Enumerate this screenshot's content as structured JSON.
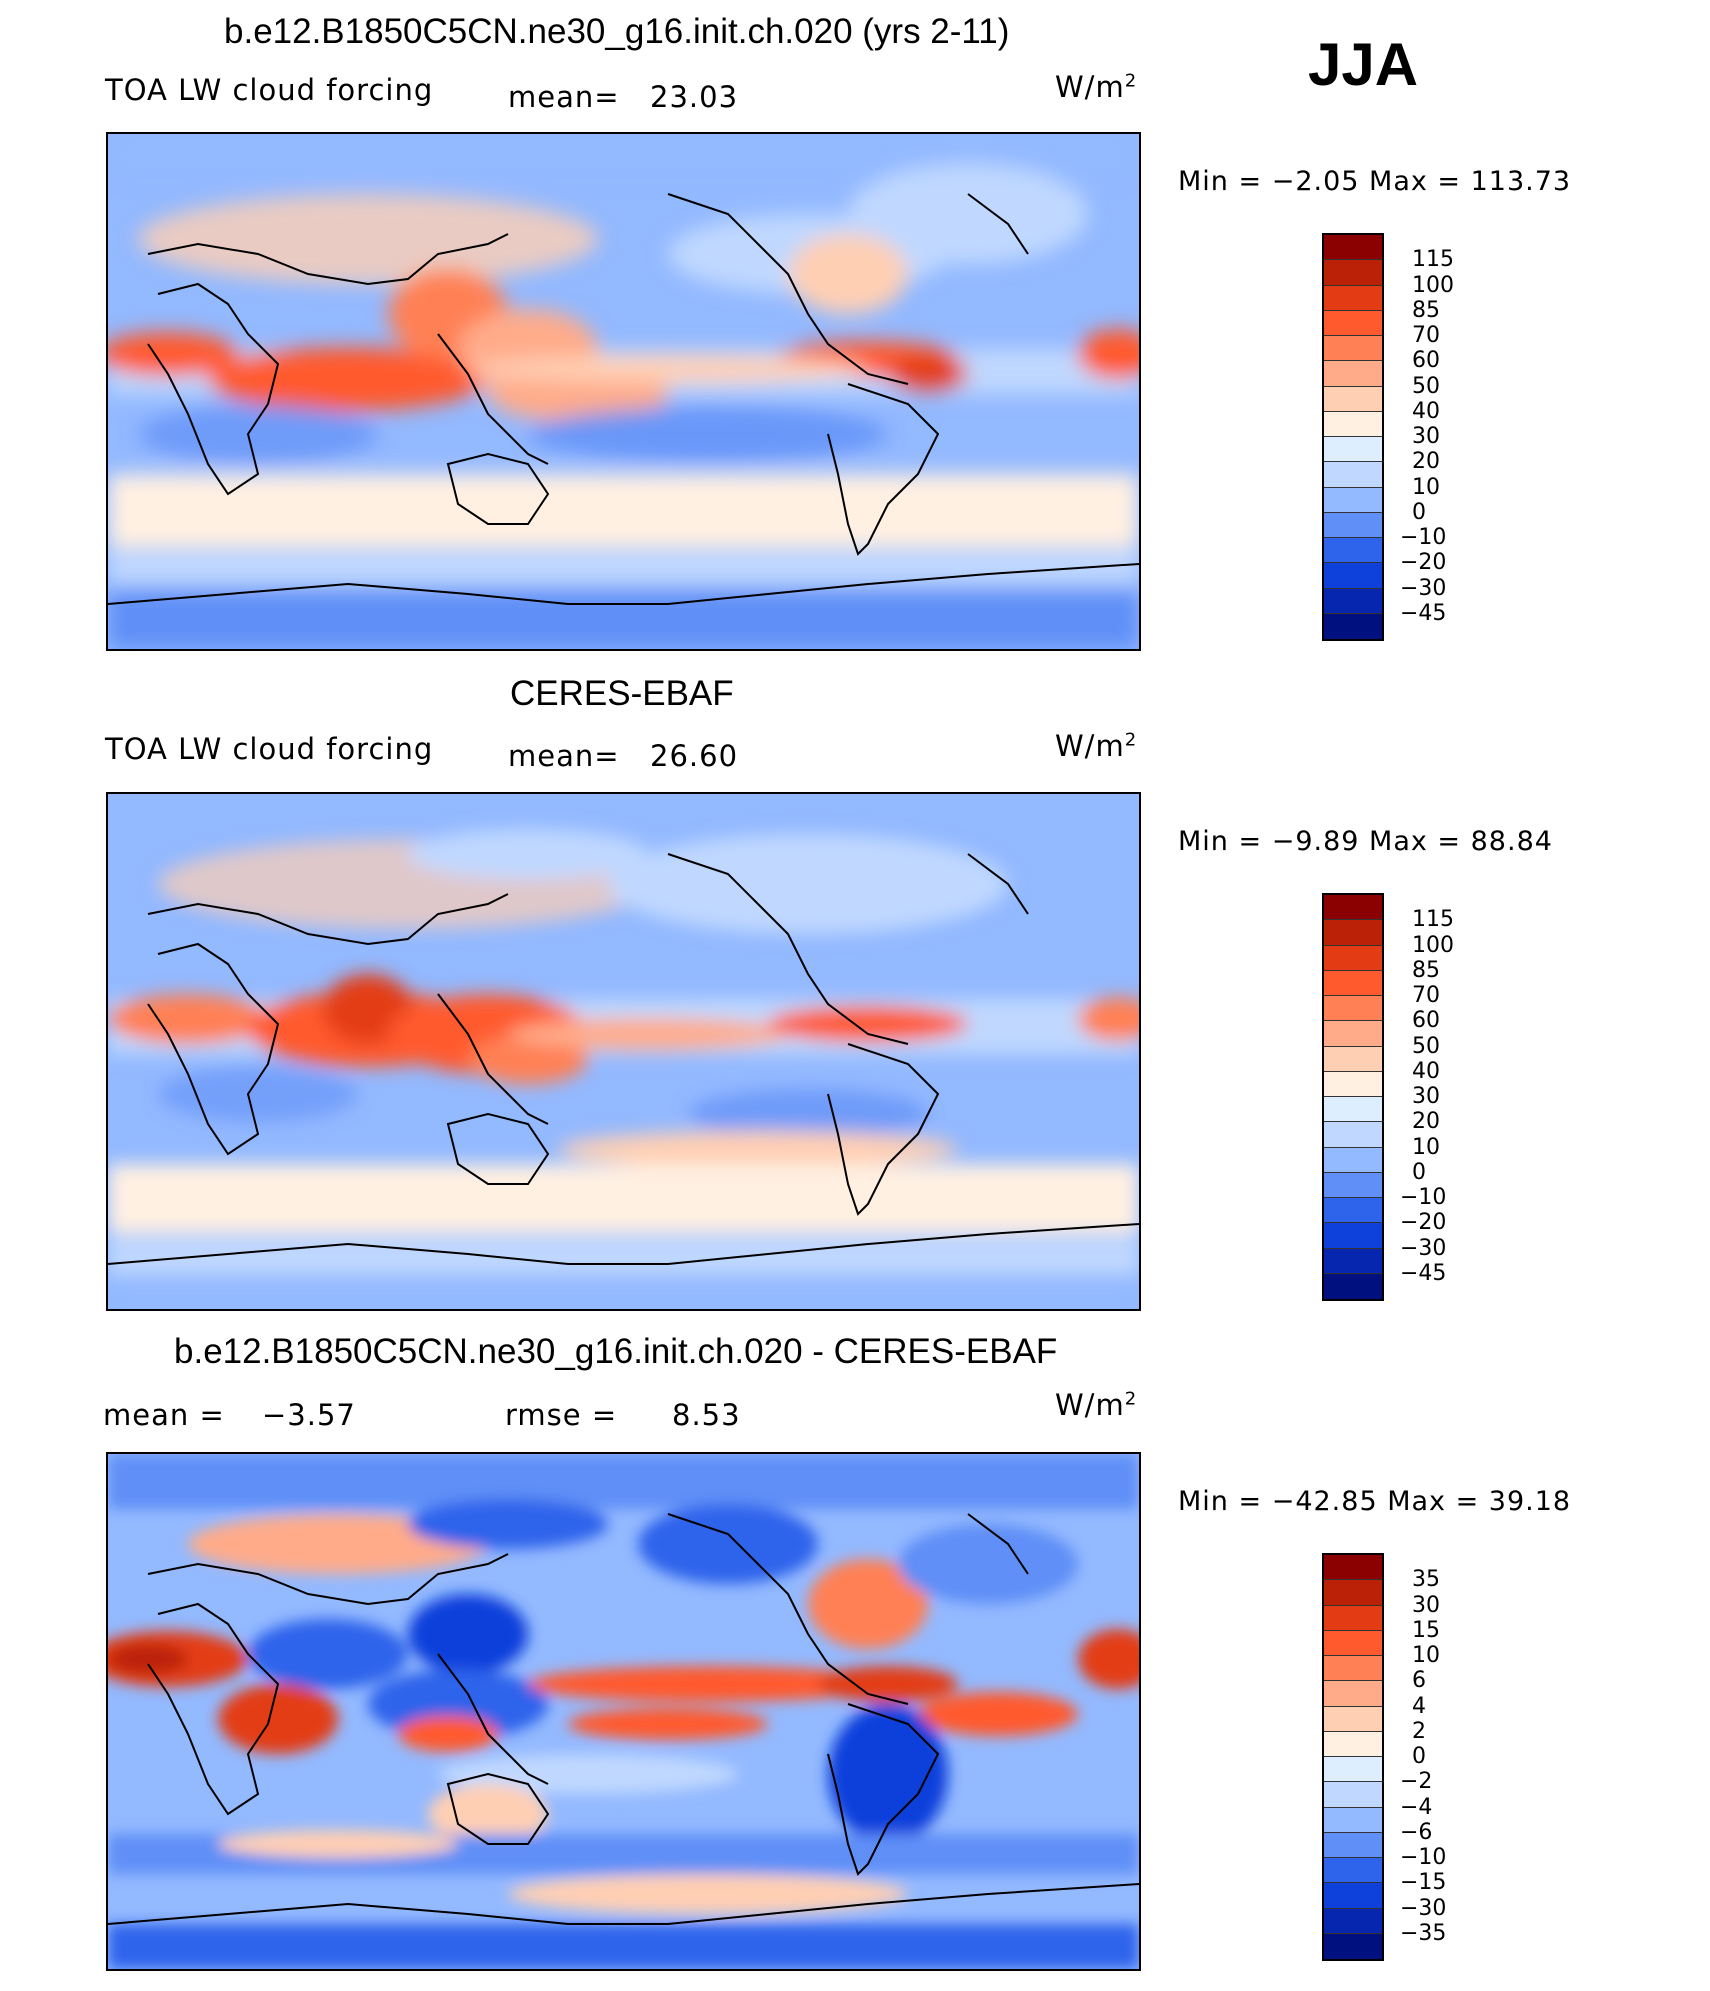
{
  "season": "JJA",
  "units_base": "W/m",
  "units_exp": "2",
  "panels": [
    {
      "title": "b.e12.B1850C5CN.ne30_g16.init.ch.020 (yrs 2-11)",
      "left_label": "TOA LW cloud forcing",
      "stat_label": "mean=",
      "stat_value": "23.03",
      "minmax": "Min =   −2.05  Max  =  113.73",
      "levels": [
        "115",
        "100",
        "85",
        "70",
        "60",
        "50",
        "40",
        "30",
        "20",
        "10",
        "0",
        "−10",
        "−20",
        "−30",
        "−45"
      ],
      "colors": [
        "#8b0000",
        "#bb2107",
        "#e33c14",
        "#ff5a2d",
        "#ff8055",
        "#ffab8a",
        "#ffcfb4",
        "#fff0e2",
        "#dceeff",
        "#c0d8ff",
        "#93b9ff",
        "#5f8ff7",
        "#2e63eb",
        "#0e40db",
        "#0726b0",
        "#00107f"
      ]
    },
    {
      "title": "CERES-EBAF",
      "left_label": "TOA LW cloud forcing",
      "stat_label": "mean=",
      "stat_value": "26.60",
      "minmax": "Min =   −9.89  Max  =   88.84",
      "levels": [
        "115",
        "100",
        "85",
        "70",
        "60",
        "50",
        "40",
        "30",
        "20",
        "10",
        "0",
        "−10",
        "−20",
        "−30",
        "−45"
      ],
      "colors": [
        "#8b0000",
        "#bb2107",
        "#e33c14",
        "#ff5a2d",
        "#ff8055",
        "#ffab8a",
        "#ffcfb4",
        "#fff0e2",
        "#dceeff",
        "#c0d8ff",
        "#93b9ff",
        "#5f8ff7",
        "#2e63eb",
        "#0e40db",
        "#0726b0",
        "#00107f"
      ]
    },
    {
      "title": "b.e12.B1850C5CN.ne30_g16.init.ch.020 - CERES-EBAF",
      "left_label": "mean =",
      "left_value": "−3.57",
      "stat_label": "rmse =",
      "stat_value": "8.53",
      "minmax": "Min = −42.85  Max  =    39.18",
      "levels": [
        "35",
        "30",
        "15",
        "10",
        "6",
        "4",
        "2",
        "0",
        "−2",
        "−4",
        "−6",
        "−10",
        "−15",
        "−30",
        "−35"
      ],
      "colors": [
        "#8b0000",
        "#bb2107",
        "#e33c14",
        "#ff5a2d",
        "#ff8055",
        "#ffab8a",
        "#ffcfb4",
        "#fff0e2",
        "#dceeff",
        "#c0d8ff",
        "#93b9ff",
        "#5f8ff7",
        "#2e63eb",
        "#0e40db",
        "#0726b0",
        "#00107f"
      ]
    }
  ],
  "chart_data": [
    {
      "type": "heatmap",
      "title": "b.e12.B1850C5CN.ne30_g16.init.ch.020 (yrs 2-11)",
      "subtitle": "TOA LW cloud forcing",
      "units": "W/m2",
      "mean": 23.03,
      "min": -2.05,
      "max": 113.73,
      "contour_levels": [
        -45,
        -30,
        -20,
        -10,
        0,
        10,
        20,
        30,
        40,
        50,
        60,
        70,
        85,
        100,
        115
      ]
    },
    {
      "type": "heatmap",
      "title": "CERES-EBAF",
      "subtitle": "TOA LW cloud forcing",
      "units": "W/m2",
      "mean": 26.6,
      "min": -9.89,
      "max": 88.84,
      "contour_levels": [
        -45,
        -30,
        -20,
        -10,
        0,
        10,
        20,
        30,
        40,
        50,
        60,
        70,
        85,
        100,
        115
      ]
    },
    {
      "type": "heatmap",
      "title": "b.e12.B1850C5CN.ne30_g16.init.ch.020 - CERES-EBAF",
      "units": "W/m2",
      "mean": -3.57,
      "rmse": 8.53,
      "min": -42.85,
      "max": 39.18,
      "contour_levels": [
        -35,
        -30,
        -15,
        -10,
        -6,
        -4,
        -2,
        0,
        2,
        4,
        6,
        10,
        15,
        30,
        35
      ]
    }
  ]
}
